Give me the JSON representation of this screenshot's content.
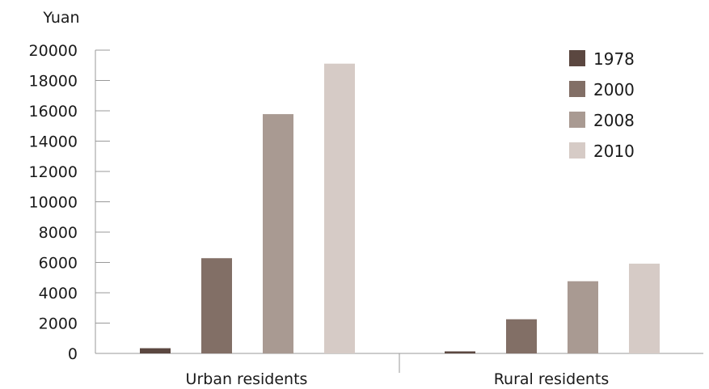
{
  "chart_data": {
    "type": "bar",
    "ylabel": "Yuan",
    "xlabel": "",
    "title": "",
    "ylim": [
      0,
      20000
    ],
    "yticks": [
      "0",
      "2000",
      "4000",
      "6000",
      "8000",
      "10000",
      "12000",
      "14000",
      "16000",
      "18000",
      "20000"
    ],
    "categories": [
      "Urban residents",
      "Rural residents"
    ],
    "series": [
      {
        "name": "1978",
        "color": "#5b4740",
        "values": [
          343,
          134
        ]
      },
      {
        "name": "2000",
        "color": "#826f66",
        "values": [
          6280,
          2253
        ]
      },
      {
        "name": "2008",
        "color": "#a99a92",
        "values": [
          15781,
          4761
        ]
      },
      {
        "name": "2010",
        "color": "#d6cbc6",
        "values": [
          19109,
          5919
        ]
      }
    ],
    "grid": false,
    "legend_position": "top-right"
  }
}
